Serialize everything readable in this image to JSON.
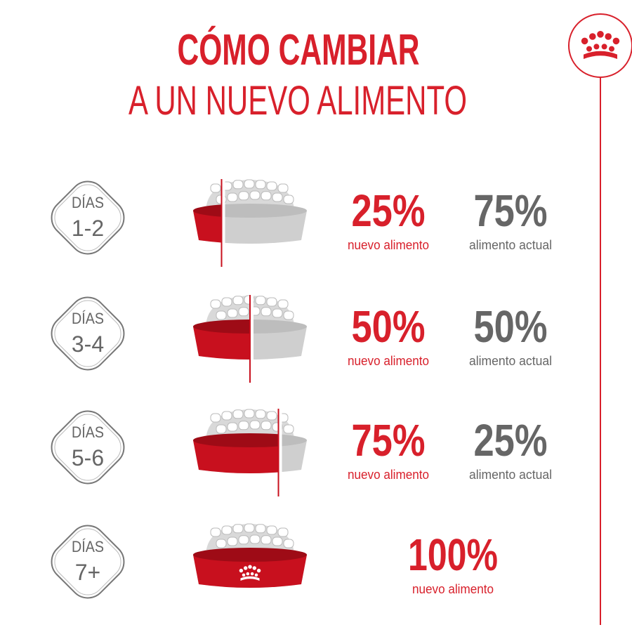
{
  "header": {
    "title_line1": "CÓMO CAMBIAR",
    "title_line2": "A UN NUEVO ALIMENTO"
  },
  "steps": [
    {
      "days_label": "DÍAS",
      "days": "1-2",
      "new_pct": "25%",
      "new_label": "nuevo alimento",
      "current_pct": "75%",
      "current_label": "alimento actual"
    },
    {
      "days_label": "DÍAS",
      "days": "3-4",
      "new_pct": "50%",
      "new_label": "nuevo alimento",
      "current_pct": "50%",
      "current_label": "alimento actual"
    },
    {
      "days_label": "DÍAS",
      "days": "5-6",
      "new_pct": "75%",
      "new_label": "nuevo alimento",
      "current_pct": "25%",
      "current_label": "alimento actual"
    },
    {
      "days_label": "DÍAS",
      "days": "7+",
      "new_pct": "100%",
      "new_label": "nuevo alimento"
    }
  ]
}
